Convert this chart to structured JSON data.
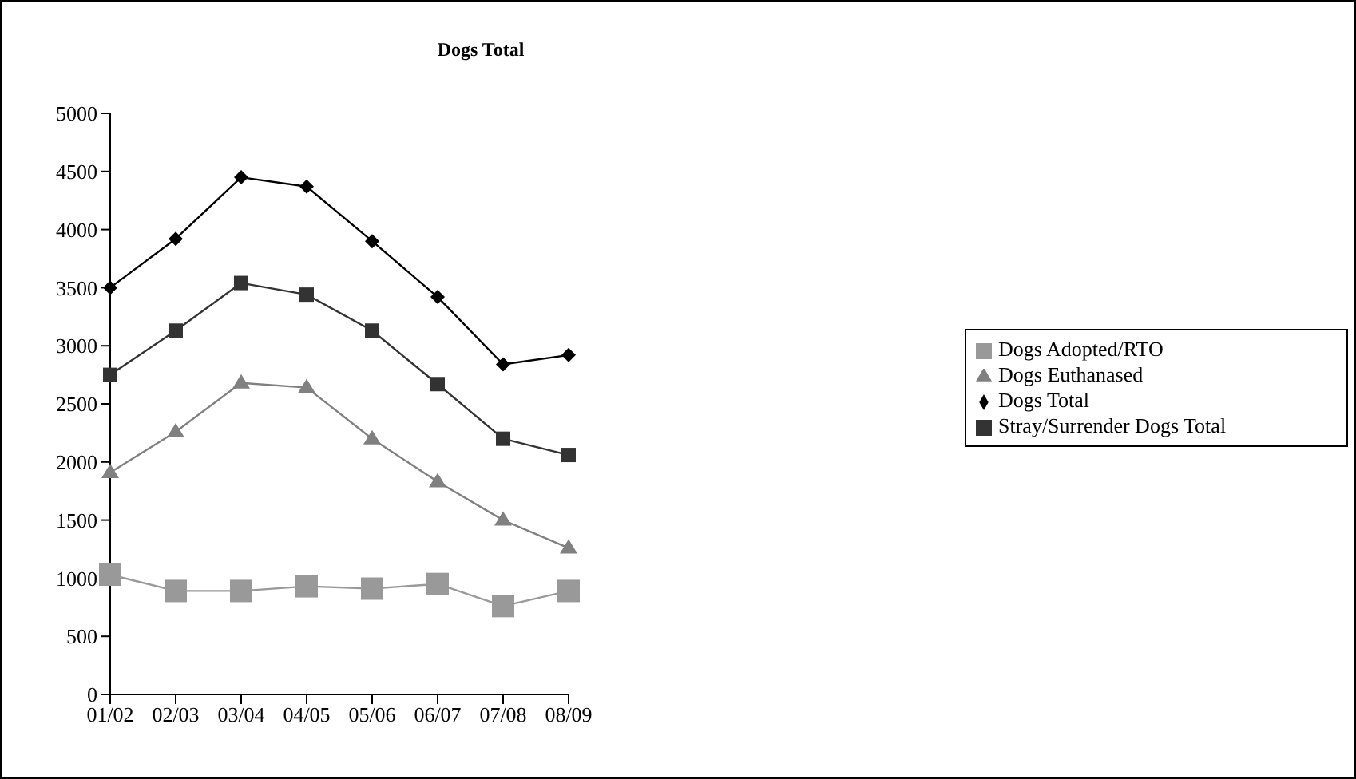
{
  "chart_data": {
    "type": "line",
    "title": "Dogs Total",
    "categories": [
      "01/02",
      "02/03",
      "03/04",
      "04/05",
      "05/06",
      "06/07",
      "07/08",
      "08/09"
    ],
    "series": [
      {
        "name": "Dogs Total",
        "color": "#000000",
        "marker": "diamond",
        "values": [
          3500,
          3920,
          4450,
          4370,
          3900,
          3420,
          2840,
          2920
        ]
      },
      {
        "name": "Stray/Surrender Dogs Total",
        "color": "#333333",
        "marker": "square",
        "values": [
          2750,
          3130,
          3540,
          3440,
          3130,
          2670,
          2200,
          2060
        ]
      },
      {
        "name": "Dogs Euthanased",
        "color": "#808080",
        "marker": "triangle",
        "values": [
          1910,
          2260,
          2680,
          2640,
          2200,
          1830,
          1500,
          1260
        ]
      },
      {
        "name": "Dogs Adopted/RTO",
        "color": "#999999",
        "marker": "square",
        "values": [
          1030,
          890,
          890,
          930,
          910,
          950,
          760,
          890
        ]
      }
    ],
    "ylim": [
      0,
      5000
    ],
    "yticks": [
      0,
      500,
      1000,
      1500,
      2000,
      2500,
      3000,
      3500,
      4000,
      4500,
      5000
    ],
    "grid": false,
    "legend": "right",
    "line_style": "solid"
  }
}
